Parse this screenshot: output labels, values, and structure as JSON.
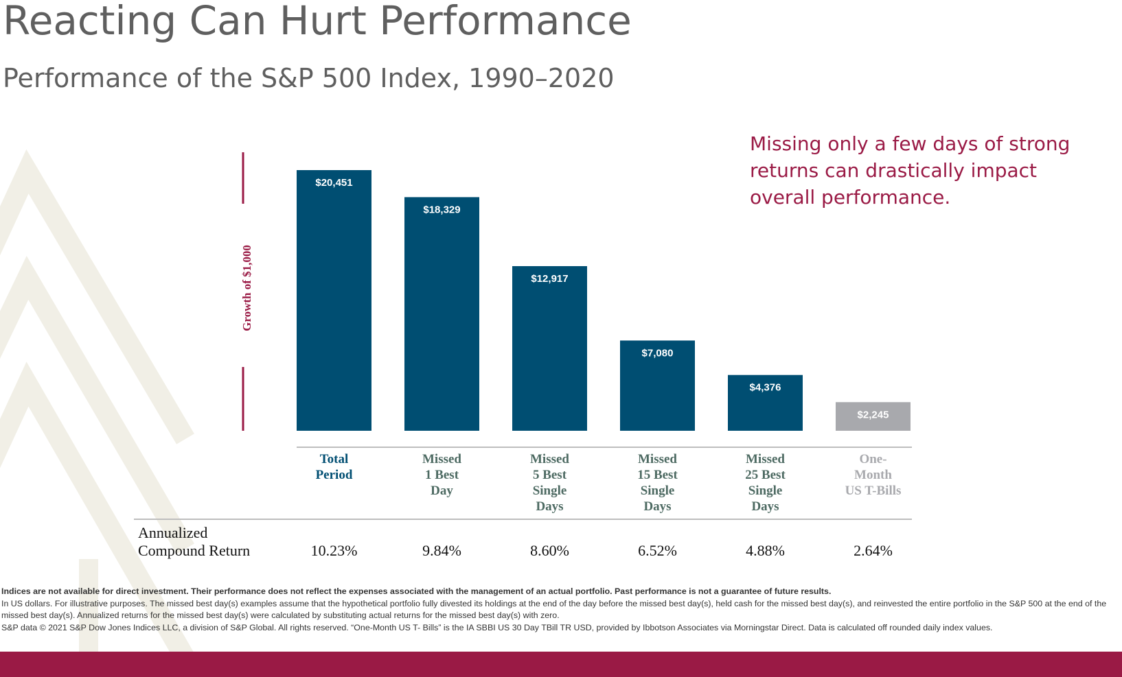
{
  "title": "Reacting Can Hurt Performance",
  "subtitle": "Performance of the S&P 500 Index, 1990–2020",
  "callout": {
    "lines": [
      "Missing only a few days of strong",
      "returns can drastically impact",
      "overall performance."
    ]
  },
  "colors": {
    "bar_primary": "#004e72",
    "bar_secondary": "#a8a9ad",
    "accent": "#9a1a45",
    "category_primary": "#004e72",
    "category_missed": "#4d6a62",
    "category_tbills": "#a8a9ad"
  },
  "chart_data": {
    "type": "bar",
    "title": "Performance of the S&P 500 Index, 1990–2020",
    "ylabel": "Growth of $1,000",
    "categories": [
      [
        "Total",
        "Period"
      ],
      [
        "Missed",
        "1 Best",
        "Day"
      ],
      [
        "Missed",
        "5 Best",
        "Single",
        "Days"
      ],
      [
        "Missed",
        "15 Best",
        "Single",
        "Days"
      ],
      [
        "Missed",
        "25 Best",
        "Single",
        "Days"
      ],
      [
        "One-",
        "Month",
        "US T-Bills"
      ]
    ],
    "values": [
      20451,
      18329,
      12917,
      7080,
      4376,
      2245
    ],
    "data_labels": [
      "$20,451",
      "$18,329",
      "$12,917",
      "$7,080",
      "$4,376",
      "$2,245"
    ],
    "ylim": [
      0,
      20451
    ],
    "grid": false,
    "legend": "none"
  },
  "returns": {
    "label_lines": [
      "Annualized",
      "Compound Return"
    ],
    "values": [
      "10.23%",
      "9.84%",
      "8.60%",
      "6.52%",
      "4.88%",
      "2.64%"
    ]
  },
  "footnotes": {
    "bold": "Indices are not available for direct investment. Their performance does not reflect the expenses associated with the management of an actual portfolio. Past performance is not a guarantee of future results.",
    "line2": "In US dollars. For illustrative purposes. The missed best day(s) examples assume that the hypothetical portfolio fully divested its holdings at the end of the day before the missed best day(s), held cash for the missed best day(s), and reinvested the entire portfolio in the S&P 500 at the end of the missed best day(s). Annualized returns for the missed best day(s) were calculated by substituting actual returns for the missed best day(s) with zero.",
    "line3": "S&P data © 2021 S&P Dow Jones Indices LLC, a division of S&P Global. All rights reserved. “One-Month US T- Bills” is the IA SBBI US 30 Day TBill TR USD, provided by Ibbotson Associates via Morningstar Direct. Data is calculated off rounded daily index values."
  }
}
